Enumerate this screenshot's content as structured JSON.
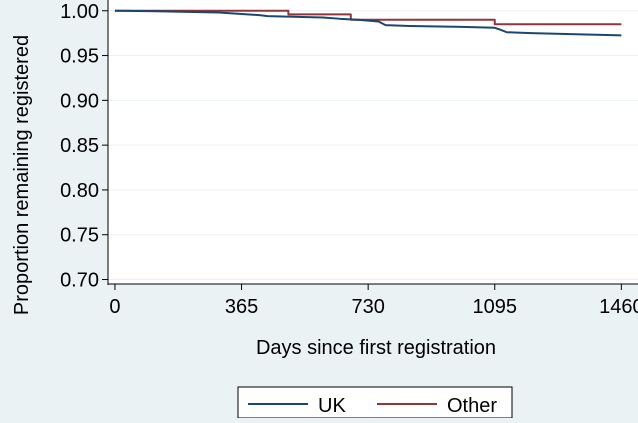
{
  "chart_data": {
    "type": "line",
    "title": "",
    "xlabel": "Days since first registration",
    "ylabel": "Proportion remaining registered",
    "xlim": [
      -20,
      1508
    ],
    "ylim": [
      0.695,
      1.012
    ],
    "xticks": [
      0,
      365,
      730,
      1095,
      1460
    ],
    "yticks": [
      "0.70",
      "0.75",
      "0.80",
      "0.85",
      "0.90",
      "0.95",
      "1.00"
    ],
    "grid": {
      "horizontal": true,
      "vertical": false
    },
    "legend_position": "bottom",
    "series": [
      {
        "name": "UK",
        "color": "#1a476f",
        "step": false,
        "x": [
          0,
          120,
          300,
          420,
          440,
          600,
          650,
          700,
          760,
          780,
          850,
          1000,
          1095,
          1110,
          1130,
          1200,
          1300,
          1460
        ],
        "y": [
          1.0,
          0.9995,
          0.998,
          0.995,
          0.994,
          0.9925,
          0.991,
          0.99,
          0.988,
          0.984,
          0.983,
          0.982,
          0.981,
          0.979,
          0.976,
          0.975,
          0.974,
          0.9725
        ]
      },
      {
        "name": "Other",
        "color": "#90353b",
        "step": true,
        "x": [
          0,
          500,
          680,
          1095,
          1460
        ],
        "y": [
          1.0,
          0.996,
          0.99,
          0.985,
          0.985
        ]
      }
    ]
  }
}
